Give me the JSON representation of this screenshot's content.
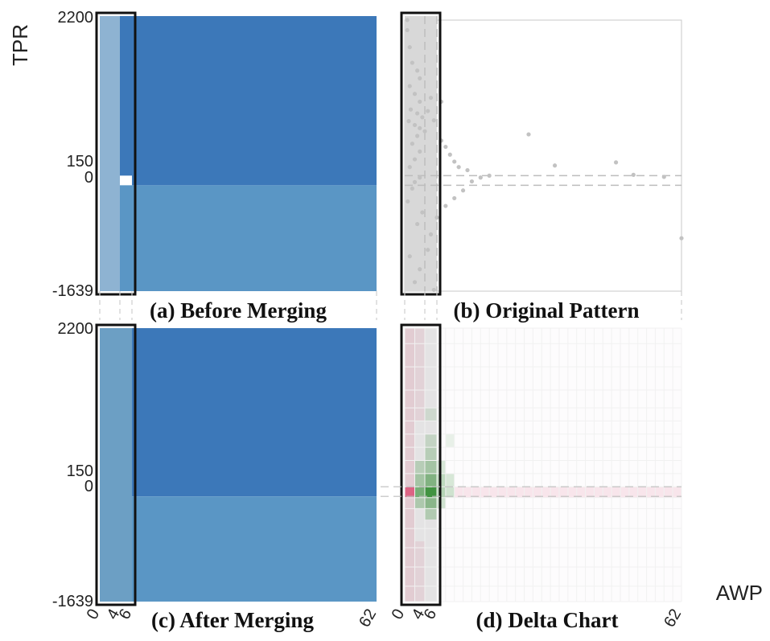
{
  "figure": {
    "ylabel": "TPR",
    "xlabel": "AWP",
    "y_ticks": [
      "2200",
      "150",
      "0",
      "-1639"
    ],
    "x_ticks": [
      "0",
      "4",
      "6",
      "62"
    ],
    "colors": {
      "blue_dark": "#3c78b9",
      "blue_light": "#5a96c5",
      "highlight": "#d3dfe9",
      "selection_border": "#111111",
      "grey_box": "#d8d8d8",
      "dot": "#c2c2c2",
      "green": "#2f8a2f",
      "red": "#d9436b"
    }
  },
  "chart_data": [
    {
      "panel": "a",
      "type": "heatmap",
      "title": "(a) Before Merging",
      "xlim": [
        0,
        62
      ],
      "ylim": [
        -1639,
        2200
      ],
      "x_bins": [
        0,
        4,
        6,
        62
      ],
      "y_bins": [
        -1639,
        0,
        150,
        2200
      ],
      "selection": {
        "x": [
          0,
          6
        ],
        "y": [
          -1639,
          2200
        ]
      },
      "cells": [
        {
          "x": [
            0,
            4
          ],
          "y": [
            -1639,
            2200
          ],
          "color": "#8eb3d2"
        },
        {
          "x": [
            4,
            6
          ],
          "y": [
            150,
            2200
          ],
          "color": "#3c78b9"
        },
        {
          "x": [
            4,
            6
          ],
          "y": [
            -1639,
            0
          ],
          "color": "#5a96c5"
        },
        {
          "x": [
            6,
            62
          ],
          "y": [
            0,
            2200
          ],
          "color": "#3c78b9"
        },
        {
          "x": [
            6,
            62
          ],
          "y": [
            -1639,
            0
          ],
          "color": "#5a96c5"
        }
      ]
    },
    {
      "panel": "b",
      "type": "scatter",
      "title": "(b) Original Pattern",
      "xlim": [
        0,
        62
      ],
      "ylim": [
        -1639,
        2200
      ],
      "selection": {
        "x": [
          0,
          6
        ],
        "y": [
          -1639,
          2200
        ]
      },
      "reference_lines": {
        "y": [
          150,
          0
        ],
        "x": [
          4,
          6
        ]
      },
      "points": [
        [
          0.5,
          2150
        ],
        [
          1,
          1800
        ],
        [
          1.5,
          1600
        ],
        [
          2.5,
          1500
        ],
        [
          3,
          1400
        ],
        [
          1,
          1300
        ],
        [
          2,
          1200
        ],
        [
          3,
          1100
        ],
        [
          1.2,
          1000
        ],
        [
          2.5,
          950
        ],
        [
          3.5,
          900
        ],
        [
          0.8,
          850
        ],
        [
          2,
          800
        ],
        [
          3,
          760
        ],
        [
          4,
          720
        ],
        [
          4.5,
          980
        ],
        [
          5,
          1150
        ],
        [
          7,
          1100
        ],
        [
          5.5,
          860
        ],
        [
          7,
          600
        ],
        [
          8,
          520
        ],
        [
          9,
          420
        ],
        [
          10,
          330
        ],
        [
          11,
          260
        ],
        [
          13,
          220
        ],
        [
          27,
          680
        ],
        [
          33,
          280
        ],
        [
          47,
          320
        ],
        [
          51,
          160
        ],
        [
          58,
          130
        ],
        [
          62,
          -820
        ],
        [
          18,
          150
        ],
        [
          16,
          120
        ],
        [
          14,
          60
        ],
        [
          12,
          -80
        ],
        [
          10,
          -200
        ],
        [
          8,
          -320
        ],
        [
          6,
          -500
        ],
        [
          5,
          -760
        ],
        [
          4.5,
          -1000
        ],
        [
          3,
          -1300
        ],
        [
          2,
          -1500
        ],
        [
          1,
          -1100
        ],
        [
          2.5,
          -600
        ],
        [
          3.5,
          -420
        ],
        [
          0.6,
          -250
        ],
        [
          1.5,
          -50
        ],
        [
          2,
          50
        ],
        [
          3,
          120
        ],
        [
          1,
          260
        ],
        [
          2,
          360
        ],
        [
          3,
          460
        ],
        [
          1.5,
          560
        ],
        [
          2.5,
          660
        ],
        [
          0.5,
          2020
        ],
        [
          5.5,
          -1620
        ]
      ]
    },
    {
      "panel": "c",
      "type": "heatmap",
      "title": "(c) After Merging",
      "xlim": [
        0,
        62
      ],
      "ylim": [
        -1639,
        2200
      ],
      "x_bins": [
        0,
        6,
        62
      ],
      "y_bins": [
        -1639,
        0,
        150,
        2200
      ],
      "selection": {
        "x": [
          0,
          6
        ],
        "y": [
          -1639,
          2200
        ]
      },
      "cells": [
        {
          "x": [
            0,
            6
          ],
          "y": [
            -1639,
            2200
          ],
          "color": "#6c9fc4"
        },
        {
          "x": [
            6,
            62
          ],
          "y": [
            0,
            2200
          ],
          "color": "#3c78b9"
        },
        {
          "x": [
            6,
            62
          ],
          "y": [
            -1639,
            0
          ],
          "color": "#5a96c5"
        }
      ]
    },
    {
      "panel": "d",
      "type": "heatmap",
      "title": "(d) Delta Chart",
      "xlim": [
        0,
        62
      ],
      "ylim": [
        -1639,
        2200
      ],
      "selection": {
        "x": [
          0,
          6
        ],
        "y": [
          -1639,
          2200
        ]
      },
      "reference_lines": {
        "y": [
          150,
          0
        ]
      },
      "cells": [
        {
          "x": [
            0,
            2
          ],
          "y": [
            -20,
            150
          ],
          "color": "#d9436b",
          "opacity": 0.8
        },
        {
          "x": [
            4,
            6
          ],
          "y": [
            -20,
            150
          ],
          "color": "#2f8a2f",
          "opacity": 0.9
        },
        {
          "x": [
            2,
            4
          ],
          "y": [
            -20,
            150
          ],
          "color": "#2f8a2f",
          "opacity": 0.6
        },
        {
          "x": [
            4,
            6
          ],
          "y": [
            150,
            320
          ],
          "color": "#2f8a2f",
          "opacity": 0.55
        },
        {
          "x": [
            2,
            4
          ],
          "y": [
            150,
            320
          ],
          "color": "#2f8a2f",
          "opacity": 0.35
        },
        {
          "x": [
            4,
            6
          ],
          "y": [
            -190,
            -20
          ],
          "color": "#2f8a2f",
          "opacity": 0.5
        },
        {
          "x": [
            2,
            4
          ],
          "y": [
            -190,
            -20
          ],
          "color": "#2f8a2f",
          "opacity": 0.3
        },
        {
          "x": [
            6,
            8
          ],
          "y": [
            -20,
            150
          ],
          "color": "#2f8a2f",
          "opacity": 0.35
        },
        {
          "x": [
            6,
            8
          ],
          "y": [
            150,
            320
          ],
          "color": "#2f8a2f",
          "opacity": 0.3
        },
        {
          "x": [
            4,
            6
          ],
          "y": [
            320,
            490
          ],
          "color": "#2f8a2f",
          "opacity": 0.35
        },
        {
          "x": [
            2,
            4
          ],
          "y": [
            320,
            490
          ],
          "color": "#2f8a2f",
          "opacity": 0.25
        },
        {
          "x": [
            4,
            6
          ],
          "y": [
            490,
            660
          ],
          "color": "#2f8a2f",
          "opacity": 0.25
        },
        {
          "x": [
            8,
            10
          ],
          "y": [
            -20,
            150
          ],
          "color": "#2f8a2f",
          "opacity": 0.22
        },
        {
          "x": [
            8,
            10
          ],
          "y": [
            150,
            320
          ],
          "color": "#2f8a2f",
          "opacity": 0.18
        },
        {
          "x": [
            4,
            6
          ],
          "y": [
            -360,
            -190
          ],
          "color": "#2f8a2f",
          "opacity": 0.28
        },
        {
          "x": [
            6,
            8
          ],
          "y": [
            -190,
            -20
          ],
          "color": "#2f8a2f",
          "opacity": 0.22
        },
        {
          "x": [
            4,
            6
          ],
          "y": [
            660,
            830
          ],
          "color": "#2f8a2f",
          "opacity": 0.18
        },
        {
          "x": [
            6,
            8
          ],
          "y": [
            320,
            490
          ],
          "color": "#2f8a2f",
          "opacity": 0.18
        },
        {
          "x": [
            4,
            6
          ],
          "y": [
            1000,
            1170
          ],
          "color": "#2f8a2f",
          "opacity": 0.12
        },
        {
          "x": [
            8,
            10
          ],
          "y": [
            660,
            830
          ],
          "color": "#2f8a2f",
          "opacity": 0.1
        },
        {
          "x": [
            10,
            62
          ],
          "y": [
            -20,
            150
          ],
          "color": "#d9436b",
          "opacity": 0.12
        },
        {
          "x": [
            0,
            2
          ],
          "y": [
            150,
            2200
          ],
          "color": "#d9436b",
          "opacity": 0.14
        },
        {
          "x": [
            0,
            2
          ],
          "y": [
            -1639,
            -20
          ],
          "color": "#d9436b",
          "opacity": 0.14
        },
        {
          "x": [
            2,
            4
          ],
          "y": [
            1000,
            2200
          ],
          "color": "#d9436b",
          "opacity": 0.1
        },
        {
          "x": [
            2,
            4
          ],
          "y": [
            -1639,
            -700
          ],
          "color": "#d9436b",
          "opacity": 0.1
        }
      ]
    }
  ]
}
